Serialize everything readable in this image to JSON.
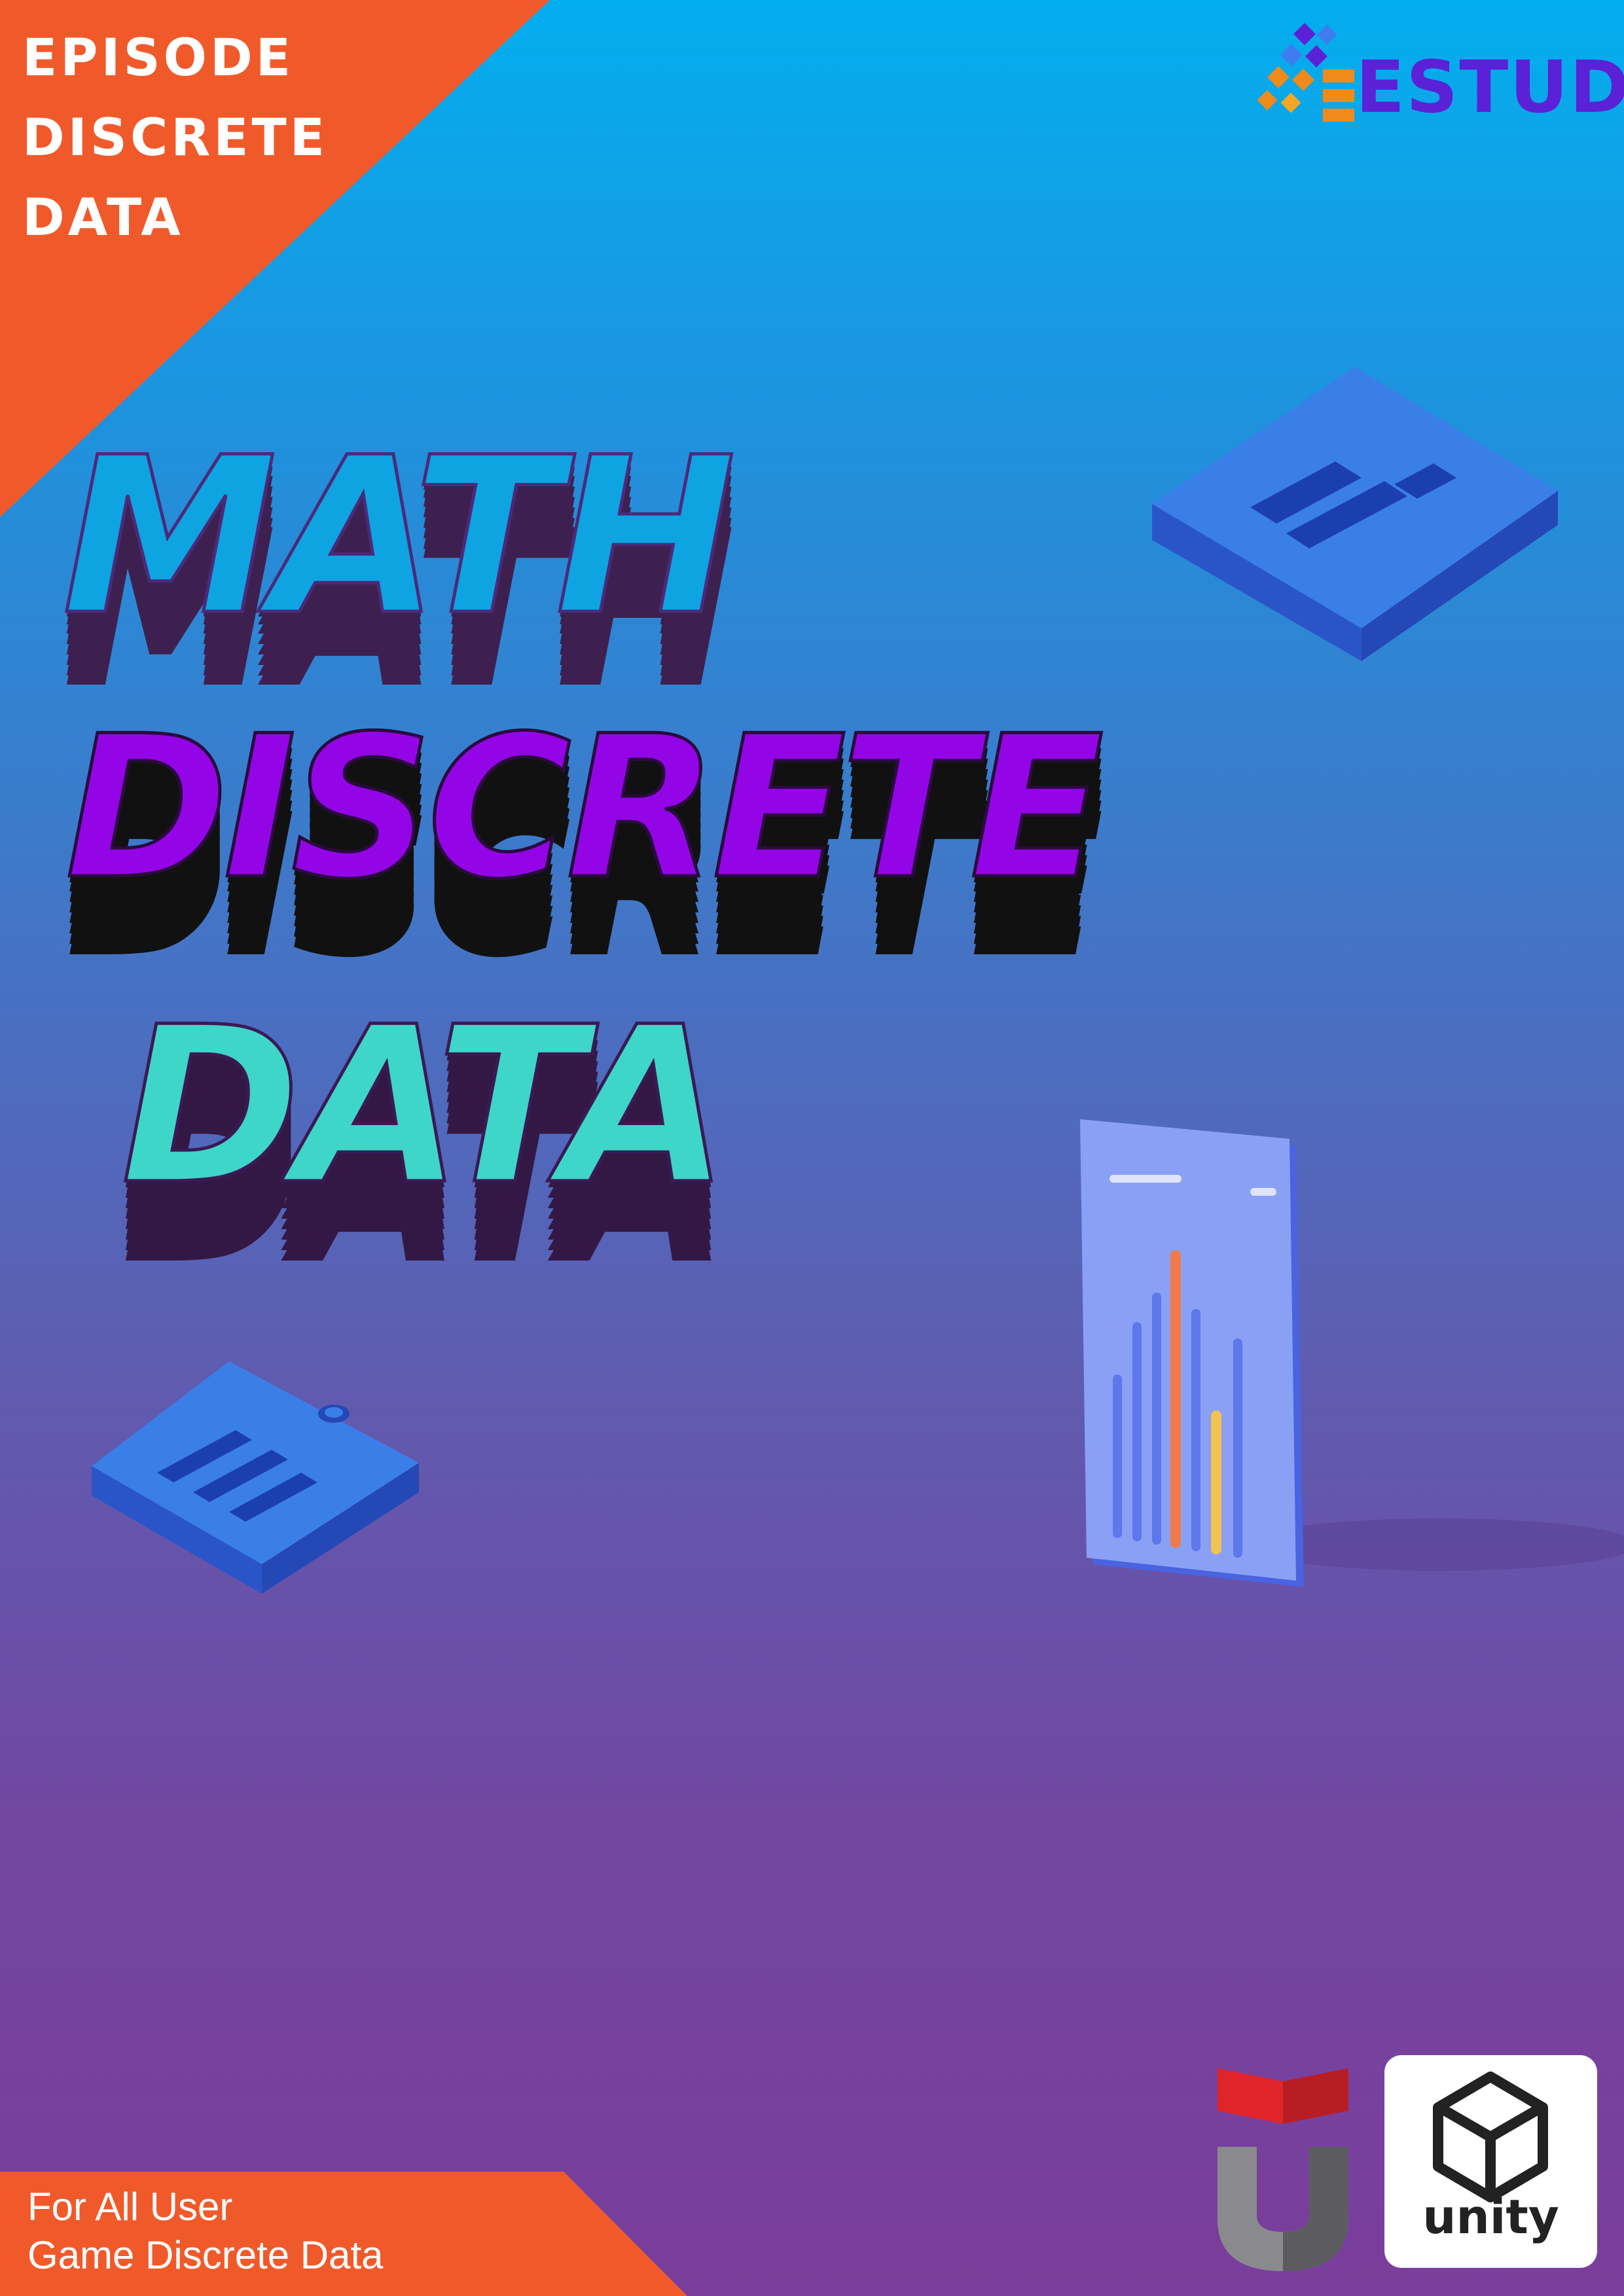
{
  "episode": {
    "line1": "EPISODE",
    "line2": "DISCRETE",
    "line3": "DATA"
  },
  "brand": {
    "name": "ESTUDY",
    "icon": "cube-grid-icon"
  },
  "title": {
    "line1": "MATH",
    "line2": "DISCRETE",
    "line3": "DATA"
  },
  "illustrations": {
    "tile_top_right": "list-tile-icon",
    "tile_bottom_left": "clipboard-tile-icon",
    "phone": "bar-chart-phone-icon"
  },
  "footer": {
    "line1": "For All User",
    "line2": "Game Discrete Data"
  },
  "partners": {
    "university": "university-u-logo",
    "engine": "unity"
  },
  "colors": {
    "accent_orange": "#f05a2a",
    "sky_top": "#03aeee",
    "purple_bottom": "#7a3d9b",
    "math_blue": "#0ea4e2",
    "discrete_purple": "#9305e6",
    "data_teal": "#3ed6c8",
    "brand_purple": "#5a21d6"
  }
}
